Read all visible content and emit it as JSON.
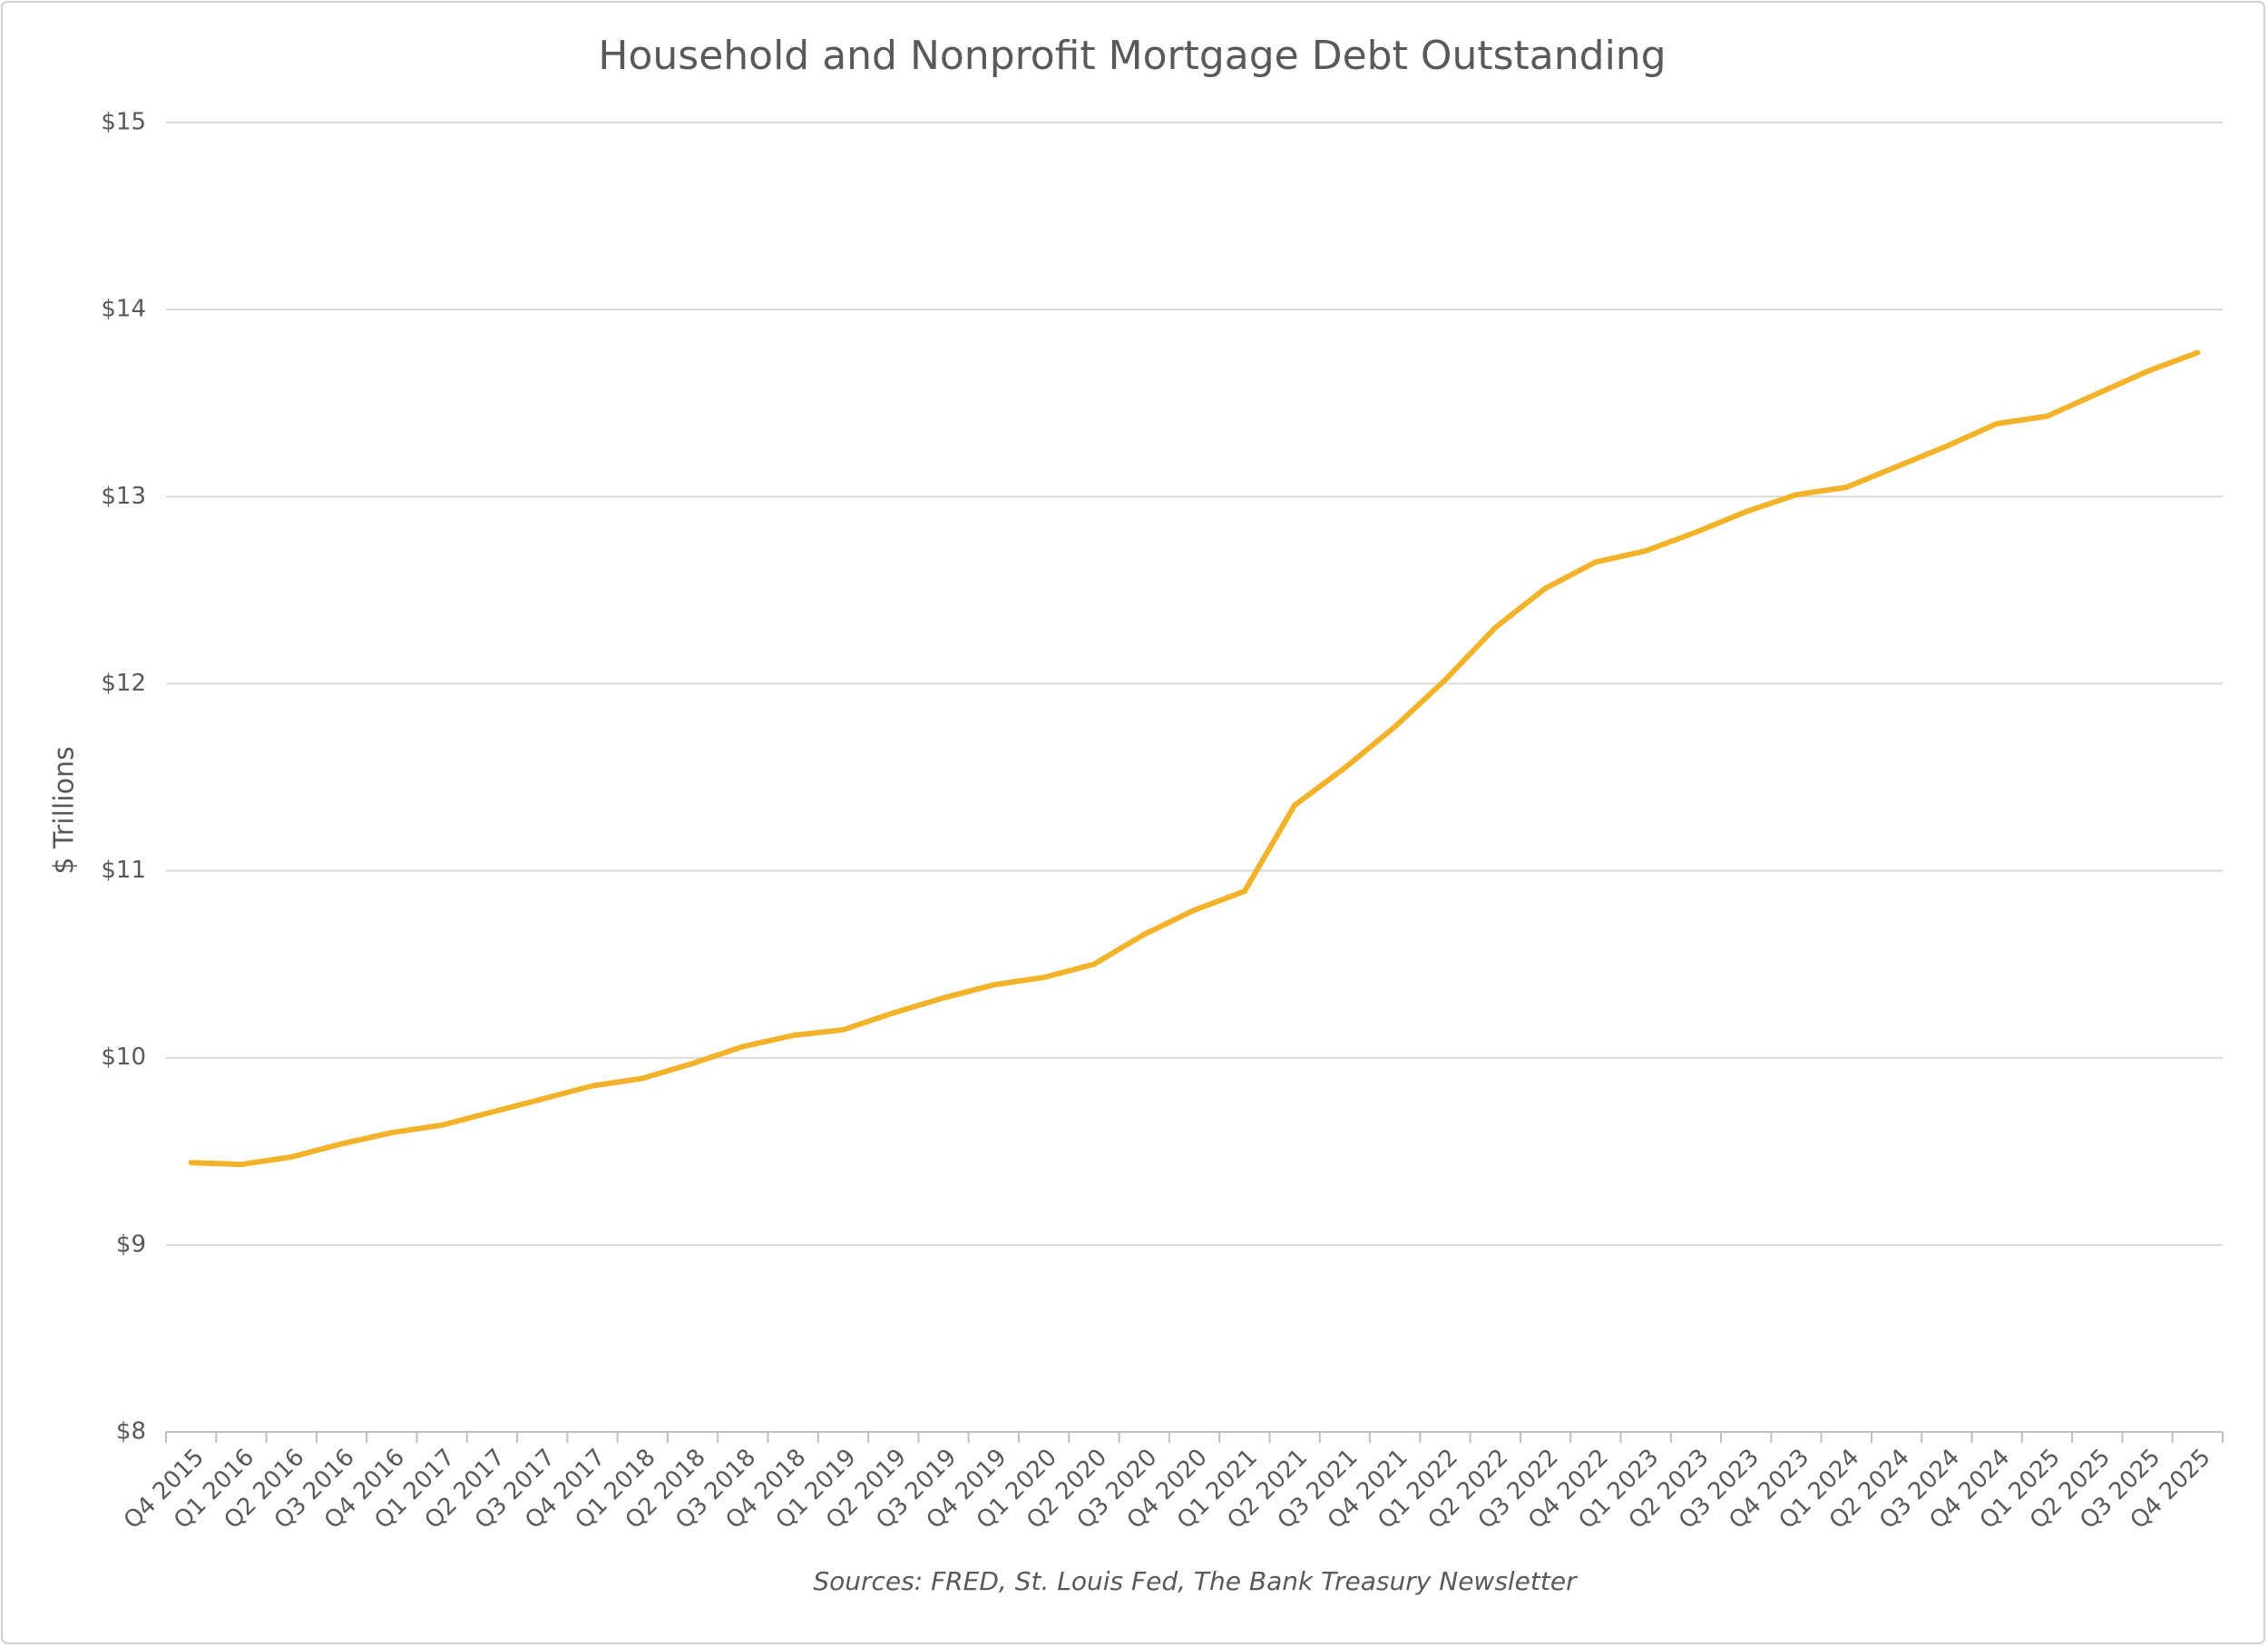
{
  "chart_data": {
    "type": "line",
    "title": "Household and Nonprofit Mortgage Debt Outstanding",
    "y_label": "$ Trillions",
    "source": "Sources: FRED, St. Louis Fed, The Bank Treasury Newsletter",
    "categories": [
      "Q4 2015",
      "Q1 2016",
      "Q2 2016",
      "Q3 2016",
      "Q4 2016",
      "Q1 2017",
      "Q2 2017",
      "Q3 2017",
      "Q4 2017",
      "Q1 2018",
      "Q2 2018",
      "Q3 2018",
      "Q4 2018",
      "Q1 2019",
      "Q2 2019",
      "Q3 2019",
      "Q4 2019",
      "Q1 2020",
      "Q2 2020",
      "Q3 2020",
      "Q4 2020",
      "Q1 2021",
      "Q2 2021",
      "Q3 2021",
      "Q4 2021",
      "Q1 2022",
      "Q2 2022",
      "Q3 2022",
      "Q4 2022",
      "Q1 2023",
      "Q2 2023",
      "Q3 2023",
      "Q4 2023",
      "Q1 2024",
      "Q2 2024",
      "Q3 2024",
      "Q4 2024",
      "Q1 2025",
      "Q2 2025",
      "Q3 2025",
      "Q4 2025"
    ],
    "values": [
      9.44,
      9.43,
      9.47,
      9.54,
      9.6,
      9.64,
      9.71,
      9.78,
      9.85,
      9.89,
      9.97,
      10.06,
      10.12,
      10.15,
      10.24,
      10.32,
      10.39,
      10.43,
      10.5,
      10.66,
      10.79,
      10.89,
      11.35,
      11.55,
      11.77,
      12.02,
      12.3,
      12.51,
      12.65,
      12.71,
      12.81,
      12.92,
      13.01,
      13.05,
      13.16,
      13.27,
      13.39,
      13.43,
      13.55,
      13.67,
      13.77
    ],
    "color": "#f2b22a",
    "ylim": [
      8,
      15
    ],
    "yticks": [
      {
        "value": 8,
        "label": "$8"
      },
      {
        "value": 9,
        "label": "$9"
      },
      {
        "value": 10,
        "label": "$10"
      },
      {
        "value": 11,
        "label": "$11"
      },
      {
        "value": 12,
        "label": "$12"
      },
      {
        "value": 13,
        "label": "$13"
      },
      {
        "value": 14,
        "label": "$14"
      },
      {
        "value": 15,
        "label": "$15"
      }
    ],
    "grid": true
  }
}
